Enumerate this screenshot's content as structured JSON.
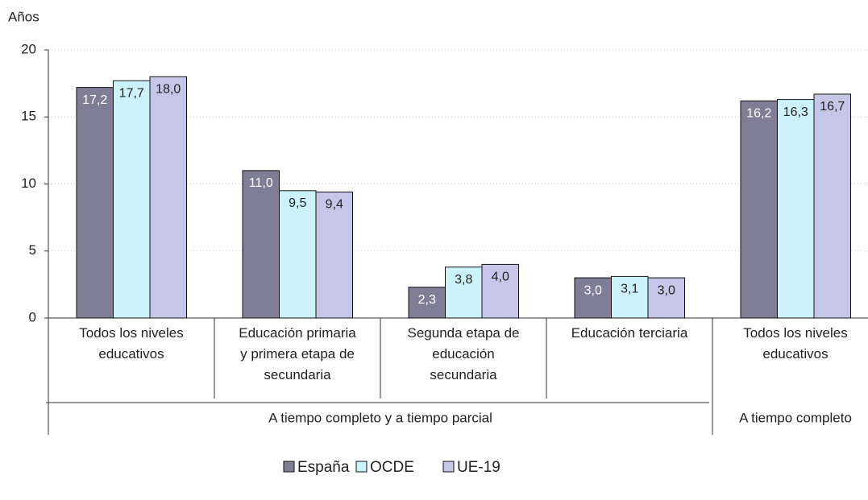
{
  "chart_data": {
    "type": "bar",
    "y_label": "Años",
    "category_groups": [
      {
        "name": "A tiempo completo y a tiempo parcial",
        "categories": [
          "Todos los niveles\neducativos",
          "Educación primaria\ny primera etapa de\nsecundaria",
          "Segunda etapa de\neducación\nsecundaria",
          "Educación terciaria"
        ]
      },
      {
        "name": "A tiempo completo",
        "categories": [
          "Todos los niveles\neducativos"
        ]
      }
    ],
    "series": [
      {
        "name": "España",
        "color": "#807e96",
        "label_color": "#ffffff",
        "values": [
          17.2,
          11.0,
          2.3,
          3.0,
          16.2
        ],
        "value_labels": [
          "17,2",
          "11,0",
          "2,3",
          "3,0",
          "16,2"
        ]
      },
      {
        "name": "OCDE",
        "color": "#ccf2fc",
        "label_color": "#222222",
        "values": [
          17.7,
          9.5,
          3.8,
          3.1,
          16.3
        ],
        "value_labels": [
          "17,7",
          "9,5",
          "3,8",
          "3,1",
          "16,3"
        ]
      },
      {
        "name": "UE-19",
        "color": "#c6c6e8",
        "label_color": "#222222",
        "values": [
          18.0,
          9.4,
          4.0,
          3.0,
          16.7
        ],
        "value_labels": [
          "18,0",
          "9,4",
          "4,0",
          "3,0",
          "16,7"
        ]
      }
    ],
    "ylim": [
      0,
      20
    ],
    "yticks": [
      0,
      5,
      10,
      15,
      20
    ],
    "grid": true,
    "legend": "bottom"
  }
}
